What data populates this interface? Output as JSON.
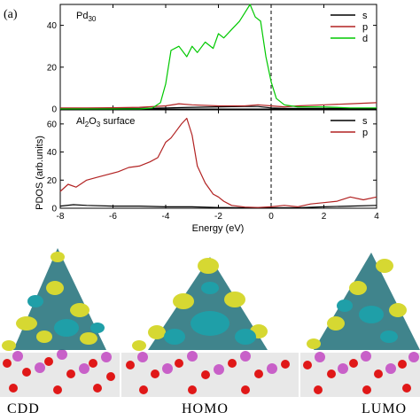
{
  "figure_tag": "(a)",
  "captions": [
    "CDD",
    "HOMO",
    "LUMO"
  ],
  "colors": {
    "s": "#000000",
    "p": "#b22222",
    "d": "#00c800",
    "isosurface_yellow": "#d6d832",
    "isosurface_cyan": "#1f9fa8",
    "pd_atom": "#1e6f78",
    "al_atom": "#c860c8",
    "o_atom": "#e01818"
  },
  "chart_data": [
    {
      "type": "line",
      "panel_label": "Pd",
      "panel_label_sub": "30",
      "x_range": [
        -8,
        4
      ],
      "ylim": [
        0,
        50
      ],
      "yticks": [
        "0",
        "20",
        "40"
      ],
      "fermi_level_x": 0,
      "legend": [
        "s",
        "p",
        "d"
      ],
      "legend_position": "top-right",
      "series": [
        {
          "name": "s",
          "x": [
            -8,
            -7,
            -6,
            -5,
            -4,
            -3,
            -2,
            -1,
            -0.5,
            0,
            0.5,
            1,
            2,
            3,
            4
          ],
          "y": [
            0.3,
            0.3,
            0.3,
            0.3,
            0.5,
            0.8,
            1.0,
            1.2,
            1.2,
            0.5,
            0.3,
            0.3,
            0.3,
            0.3,
            0.3
          ]
        },
        {
          "name": "p",
          "x": [
            -8,
            -7,
            -6,
            -5,
            -4,
            -3.5,
            -3,
            -2,
            -1,
            -0.5,
            0,
            0.5,
            1,
            2,
            3,
            4
          ],
          "y": [
            0.5,
            0.5,
            0.6,
            0.8,
            1.5,
            2.5,
            2.0,
            1.5,
            1.5,
            2.0,
            1.5,
            1.0,
            1.5,
            2.0,
            2.5,
            3.0
          ]
        },
        {
          "name": "d",
          "x": [
            -8,
            -6,
            -5,
            -4.5,
            -4.2,
            -4.0,
            -3.8,
            -3.5,
            -3.2,
            -3.0,
            -2.8,
            -2.5,
            -2.2,
            -2.0,
            -1.8,
            -1.5,
            -1.2,
            -1.0,
            -0.8,
            -0.6,
            -0.4,
            -0.2,
            0,
            0.2,
            0.5,
            1,
            2,
            3,
            4
          ],
          "y": [
            0,
            0,
            0,
            0.5,
            3,
            12,
            28,
            30,
            25,
            30,
            27,
            32,
            29,
            36,
            34,
            38,
            42,
            46,
            50,
            44,
            42,
            25,
            13,
            5,
            2,
            1,
            1,
            0.5,
            0.5
          ]
        }
      ]
    },
    {
      "type": "line",
      "panel_label": "Al",
      "panel_label_sub1": "2",
      "panel_label_mid": "O",
      "panel_label_sub2": "3",
      "panel_label_rest": " surface",
      "x_range": [
        -8,
        4
      ],
      "ylim": [
        0,
        70
      ],
      "yticks": [
        "0",
        "20",
        "40",
        "60"
      ],
      "xticks": [
        "-8",
        "-6",
        "-4",
        "-2",
        "0",
        "2",
        "4"
      ],
      "fermi_level_x": 0,
      "xlabel": "Energy (eV)",
      "ylabel": "PDOS (arb.units)",
      "legend": [
        "s",
        "p"
      ],
      "legend_position": "top-right",
      "series": [
        {
          "name": "s",
          "x": [
            -8,
            -7.5,
            -7,
            -6,
            -5,
            -4,
            -3,
            -2,
            -1,
            0,
            1,
            2,
            3,
            4
          ],
          "y": [
            1.5,
            2.5,
            2,
            1.5,
            1.5,
            1,
            1,
            0.5,
            0.3,
            0.3,
            0.3,
            1,
            1.5,
            2
          ]
        },
        {
          "name": "p",
          "x": [
            -8,
            -7.7,
            -7.4,
            -7.0,
            -6.6,
            -6.2,
            -5.8,
            -5.4,
            -5.0,
            -4.6,
            -4.3,
            -4.0,
            -3.8,
            -3.6,
            -3.4,
            -3.2,
            -3.0,
            -2.8,
            -2.5,
            -2.2,
            -2.0,
            -1.8,
            -1.5,
            -1,
            -0.5,
            0,
            0.5,
            1,
            1.5,
            2,
            2.5,
            3,
            3.5,
            4
          ],
          "y": [
            12,
            17,
            15,
            20,
            22,
            24,
            26,
            29,
            30,
            33,
            36,
            47,
            50,
            55,
            60,
            64,
            52,
            30,
            18,
            10,
            8,
            5,
            2,
            0.8,
            0.5,
            1,
            2,
            1,
            3,
            4,
            5,
            8,
            6,
            8
          ]
        }
      ]
    }
  ]
}
